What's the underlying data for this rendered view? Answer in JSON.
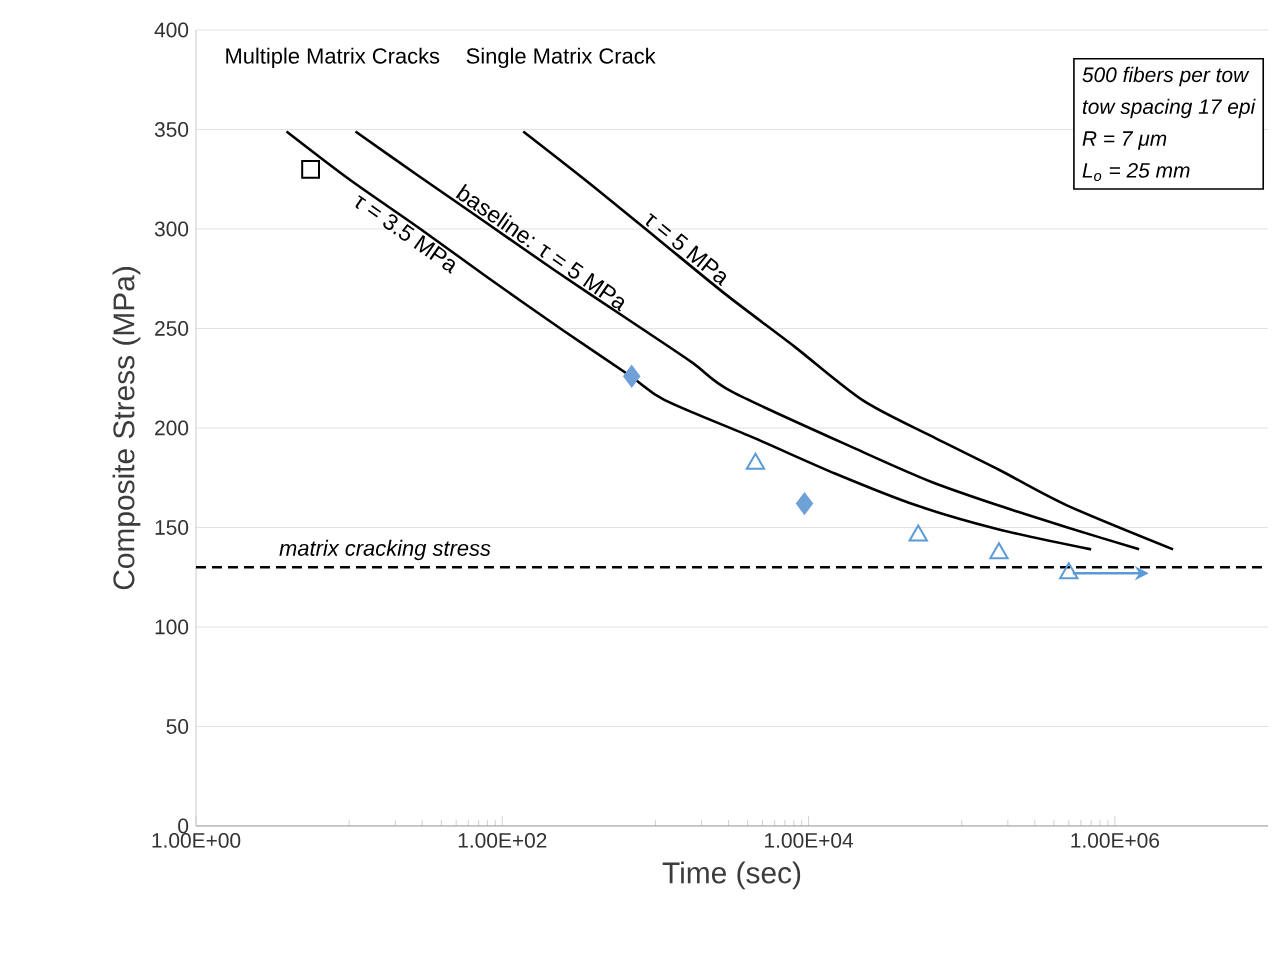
{
  "chart_data": {
    "type": "line",
    "xlabel": "Time (sec)",
    "ylabel": "Composite Stress (MPa)",
    "log": "x",
    "xlim": [
      1,
      10000000
    ],
    "ylim": [
      0,
      400
    ],
    "xticks": [
      {
        "value": 1,
        "label": "1.00E+00"
      },
      {
        "value": 100,
        "label": "1.00E+02"
      },
      {
        "value": 10000,
        "label": "1.00E+04"
      },
      {
        "value": 1000000,
        "label": "1.00E+06"
      }
    ],
    "yticks": [
      0,
      50,
      100,
      150,
      200,
      250,
      300,
      350,
      400
    ],
    "grid": "y",
    "series": [
      {
        "name": "τ = 3.5 MPa",
        "color": "#000000",
        "x": [
          3.9,
          10,
          28,
          79,
          250,
          690,
          1150,
          4400,
          15000,
          51000,
          175000,
          700000
        ],
        "values": [
          349,
          325,
          301,
          276,
          249,
          226,
          214,
          195,
          177,
          161,
          149,
          139
        ]
      },
      {
        "name": "baseline: τ = 5 MPa",
        "color": "#000000",
        "x": [
          11,
          28,
          79,
          222,
          620,
          1730,
          3200,
          22500,
          63000,
          175000,
          490000,
          1440000
        ],
        "values": [
          349,
          327,
          303,
          279,
          256,
          233,
          218,
          188,
          173,
          161,
          150,
          139
        ]
      },
      {
        "name": "τ = 5 MPa",
        "color": "#000000",
        "x": [
          137,
          370,
          1035,
          2890,
          8050,
          22500,
          63000,
          175000,
          490000,
          2400000
        ],
        "values": [
          349,
          323,
          295,
          267,
          241,
          214,
          196,
          179,
          161,
          139
        ]
      },
      {
        "type": "scatter",
        "marker": "square",
        "color": "#000000",
        "x": [
          5.6
        ],
        "values": [
          330
        ]
      },
      {
        "type": "scatter",
        "marker": "diamond",
        "color": "#6fa0d8",
        "x": [
          700,
          9400
        ],
        "values": [
          226,
          162
        ]
      },
      {
        "type": "scatter",
        "marker": "triangle",
        "color": "#5b9bd5",
        "x": [
          4500,
          52000,
          175000,
          500000
        ],
        "values": [
          182,
          146,
          137,
          127
        ]
      }
    ],
    "ref_lines": [
      {
        "axis": "y",
        "value": 130,
        "label": "matrix cracking stress",
        "line_style": "dashed",
        "color": "#000000"
      }
    ],
    "annotations": [
      "Multiple Matrix Cracks",
      "Single Matrix Crack",
      "500 fibers per tow",
      "tow spacing 17 epi",
      "R = 7 μm",
      "L$_{o}$ = 25 mm"
    ]
  }
}
